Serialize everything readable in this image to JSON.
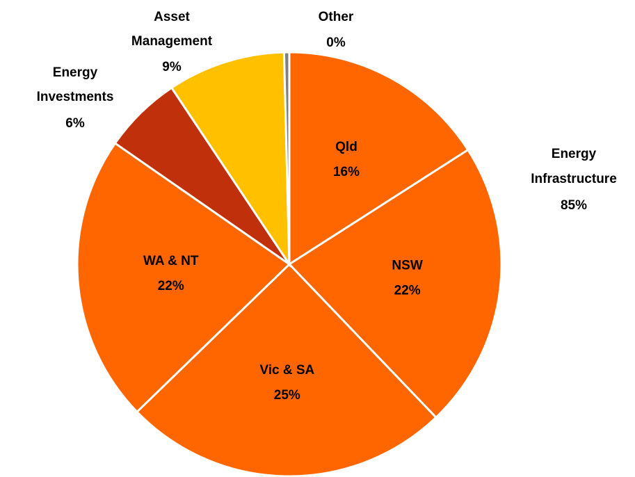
{
  "chart_data": {
    "type": "pie",
    "categories": [
      "Qld",
      "NSW",
      "Vic & SA",
      "WA & NT",
      "Energy Investments",
      "Asset Management",
      "Other"
    ],
    "values": [
      16,
      22,
      25,
      22,
      6,
      9,
      0.4
    ],
    "value_labels": [
      "16%",
      "22%",
      "25%",
      "22%",
      "6%",
      "9%",
      "0%"
    ],
    "colors": [
      "#ff6600",
      "#ff6600",
      "#ff6600",
      "#ff6600",
      "#c0300a",
      "#ffc000",
      "#808080"
    ],
    "start_angle": 0,
    "direction": "clockwise",
    "annotations": [
      {
        "text": "Energy Infrastructure",
        "label": "85%"
      }
    ]
  }
}
